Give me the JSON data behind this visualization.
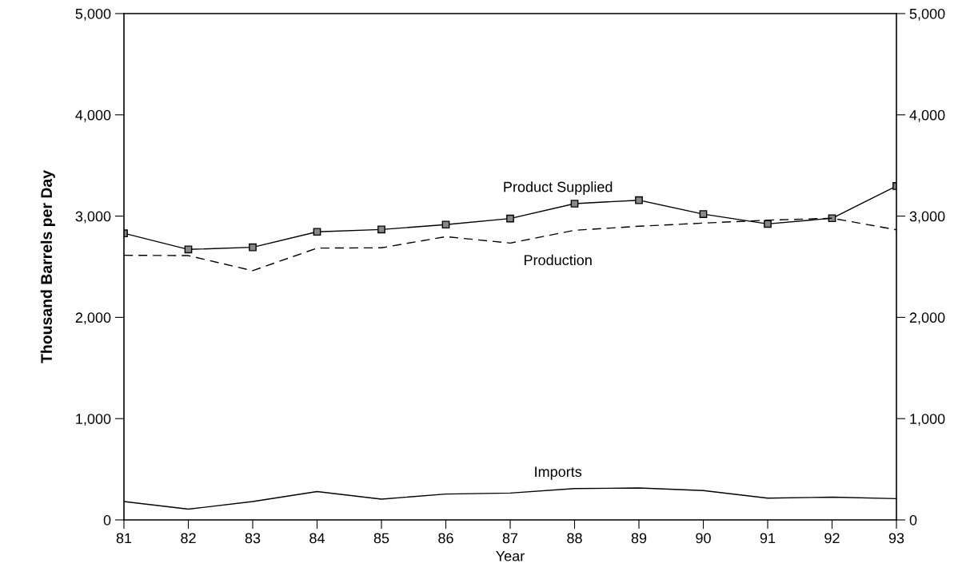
{
  "chart_data": {
    "type": "line",
    "xlabel": "Year",
    "ylabel": "Thousand Barrels per Day",
    "x": [
      81,
      82,
      83,
      84,
      85,
      86,
      87,
      88,
      89,
      90,
      91,
      92,
      93
    ],
    "series": [
      {
        "name": "Product Supplied",
        "color": "#000000",
        "marker": "square",
        "line_style": "solid",
        "values": [
          2830,
          2671,
          2692,
          2845,
          2868,
          2916,
          2976,
          3123,
          3157,
          3020,
          2923,
          2979,
          3297
        ]
      },
      {
        "name": "Production",
        "color": "#000000",
        "marker": "none",
        "line_style": "dashed",
        "values": [
          2613,
          2610,
          2461,
          2684,
          2687,
          2797,
          2734,
          2860,
          2900,
          2931,
          2960,
          2979,
          2865
        ]
      },
      {
        "name": "Imports",
        "color": "#000000",
        "marker": "none",
        "line_style": "solid",
        "values": [
          181,
          106,
          181,
          280,
          205,
          255,
          265,
          310,
          315,
          290,
          215,
          225,
          210
        ]
      }
    ],
    "xlim": [
      81,
      93
    ],
    "xticks": [
      81,
      82,
      83,
      84,
      85,
      86,
      87,
      88,
      89,
      90,
      91,
      92,
      93
    ],
    "ylim": [
      0,
      5000
    ],
    "yticks": [
      0,
      {
        "value": 1000,
        "label": "1,000"
      },
      {
        "value": 2000,
        "label": "2,000"
      },
      {
        "value": 3000,
        "label": "3,000"
      },
      {
        "value": 4000,
        "label": "4,000"
      },
      {
        "value": 5000,
        "label": "5,000"
      }
    ],
    "y2lim": [
      0,
      5000
    ],
    "y2ticks": [
      0,
      {
        "value": 1000,
        "label": "1,000"
      },
      {
        "value": 2000,
        "label": "2,000"
      },
      {
        "value": 3000,
        "label": "3,000"
      },
      {
        "value": 4000,
        "label": "4,000"
      },
      {
        "value": 5000,
        "label": "5,000"
      }
    ],
    "grid": false,
    "legend": false
  }
}
